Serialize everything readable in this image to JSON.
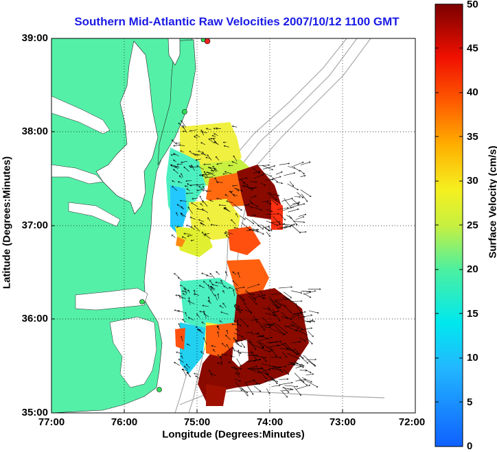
{
  "title": "Southern Mid-Atlantic Raw Velocities 2007/10/12 1100 GMT",
  "xlabel": "Longitude (Degrees:Minutes)",
  "ylabel": "Latitude (Degrees:Minutes)",
  "colorbar": {
    "label": "Surface Velocity (cm/s)",
    "ticks": [
      "0",
      "5",
      "10",
      "15",
      "20",
      "25",
      "30",
      "35",
      "40",
      "45",
      "50"
    ],
    "range": [
      0,
      50
    ]
  },
  "x_ticks": [
    "77:00",
    "76:00",
    "75:00",
    "74:00",
    "73:00",
    "72:00"
  ],
  "y_ticks": [
    "39:00",
    "38:00",
    "37:00",
    "36:00",
    "35:00"
  ],
  "colors": {
    "land": "#55f0a8",
    "water": "#ffffff",
    "bathymetry": "#a8a8a8",
    "title": "#1a1ae6",
    "station": "#33dd55",
    "station_active": "#ee2222"
  }
}
